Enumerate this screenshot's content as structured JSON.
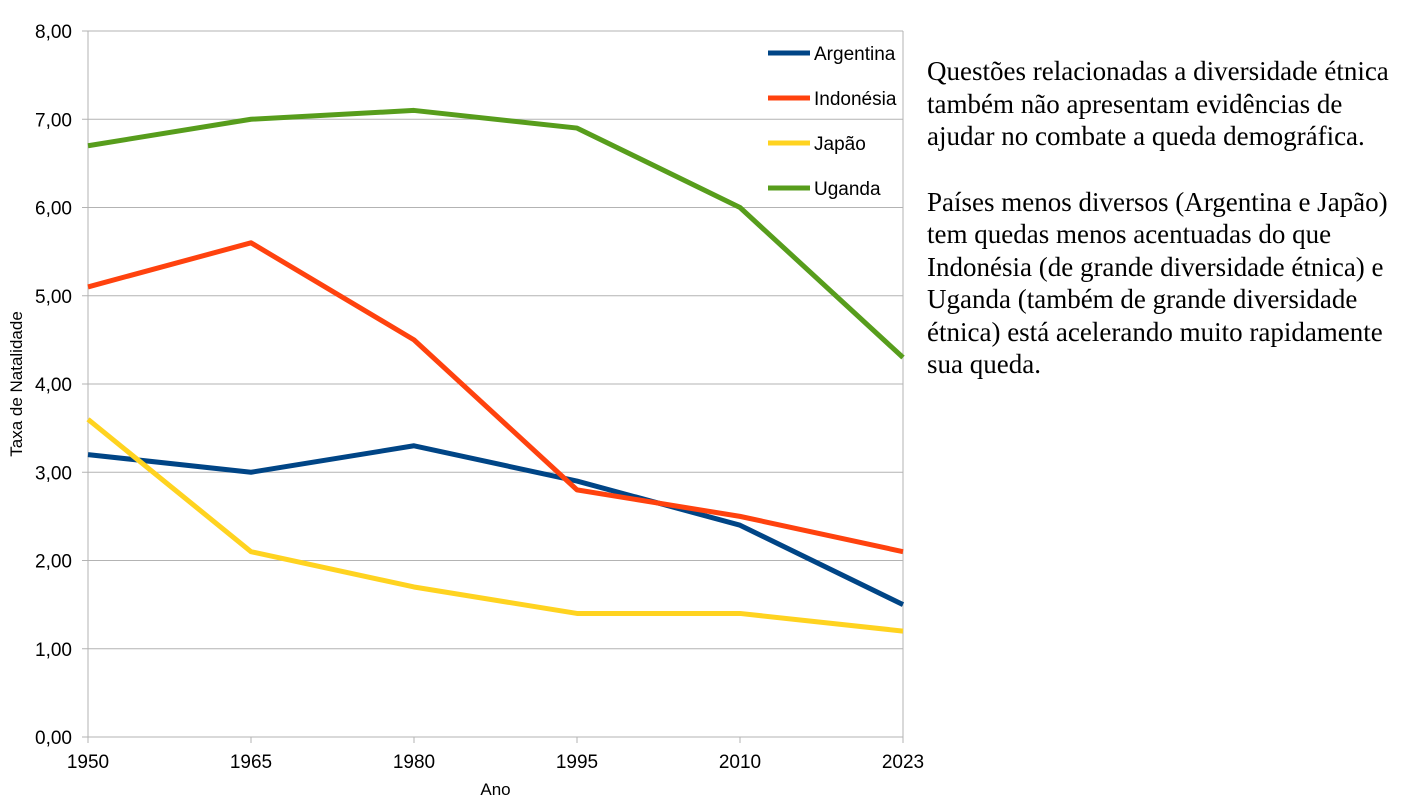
{
  "chart_data": {
    "type": "line",
    "title": "",
    "xlabel": "Ano",
    "ylabel": "Taxa de Natalidade",
    "categories": [
      "1950",
      "1965",
      "1980",
      "1995",
      "2010",
      "2023"
    ],
    "y_tick_labels": [
      "0,00",
      "1,00",
      "2,00",
      "3,00",
      "4,00",
      "5,00",
      "6,00",
      "7,00",
      "8,00"
    ],
    "ylim": [
      0,
      8
    ],
    "grid": true,
    "legend_position": "top-right",
    "series": [
      {
        "name": "Argentina",
        "color": "#004586",
        "values": [
          3.2,
          3.0,
          3.3,
          2.9,
          2.4,
          1.5
        ]
      },
      {
        "name": "Indonésia",
        "color": "#ff420e",
        "values": [
          5.1,
          5.6,
          4.5,
          2.8,
          2.5,
          2.1
        ]
      },
      {
        "name": "Japão",
        "color": "#ffd320",
        "values": [
          3.6,
          2.1,
          1.7,
          1.4,
          1.4,
          1.2
        ]
      },
      {
        "name": "Uganda",
        "color": "#579d1c",
        "values": [
          6.7,
          7.0,
          7.1,
          6.9,
          6.0,
          4.3
        ]
      }
    ]
  },
  "note": {
    "paragraph1": "Questões relacionadas a diversidade étnica também não apresentam evidências de ajudar no combate a queda demográfica.",
    "paragraph2": "Países menos diversos (Argentina e Japão) tem quedas menos acentuadas do que Indonésia (de grande diversidade étnica) e Uganda (também de grande diversidade étnica) está acelerando muito rapidamente sua queda."
  }
}
